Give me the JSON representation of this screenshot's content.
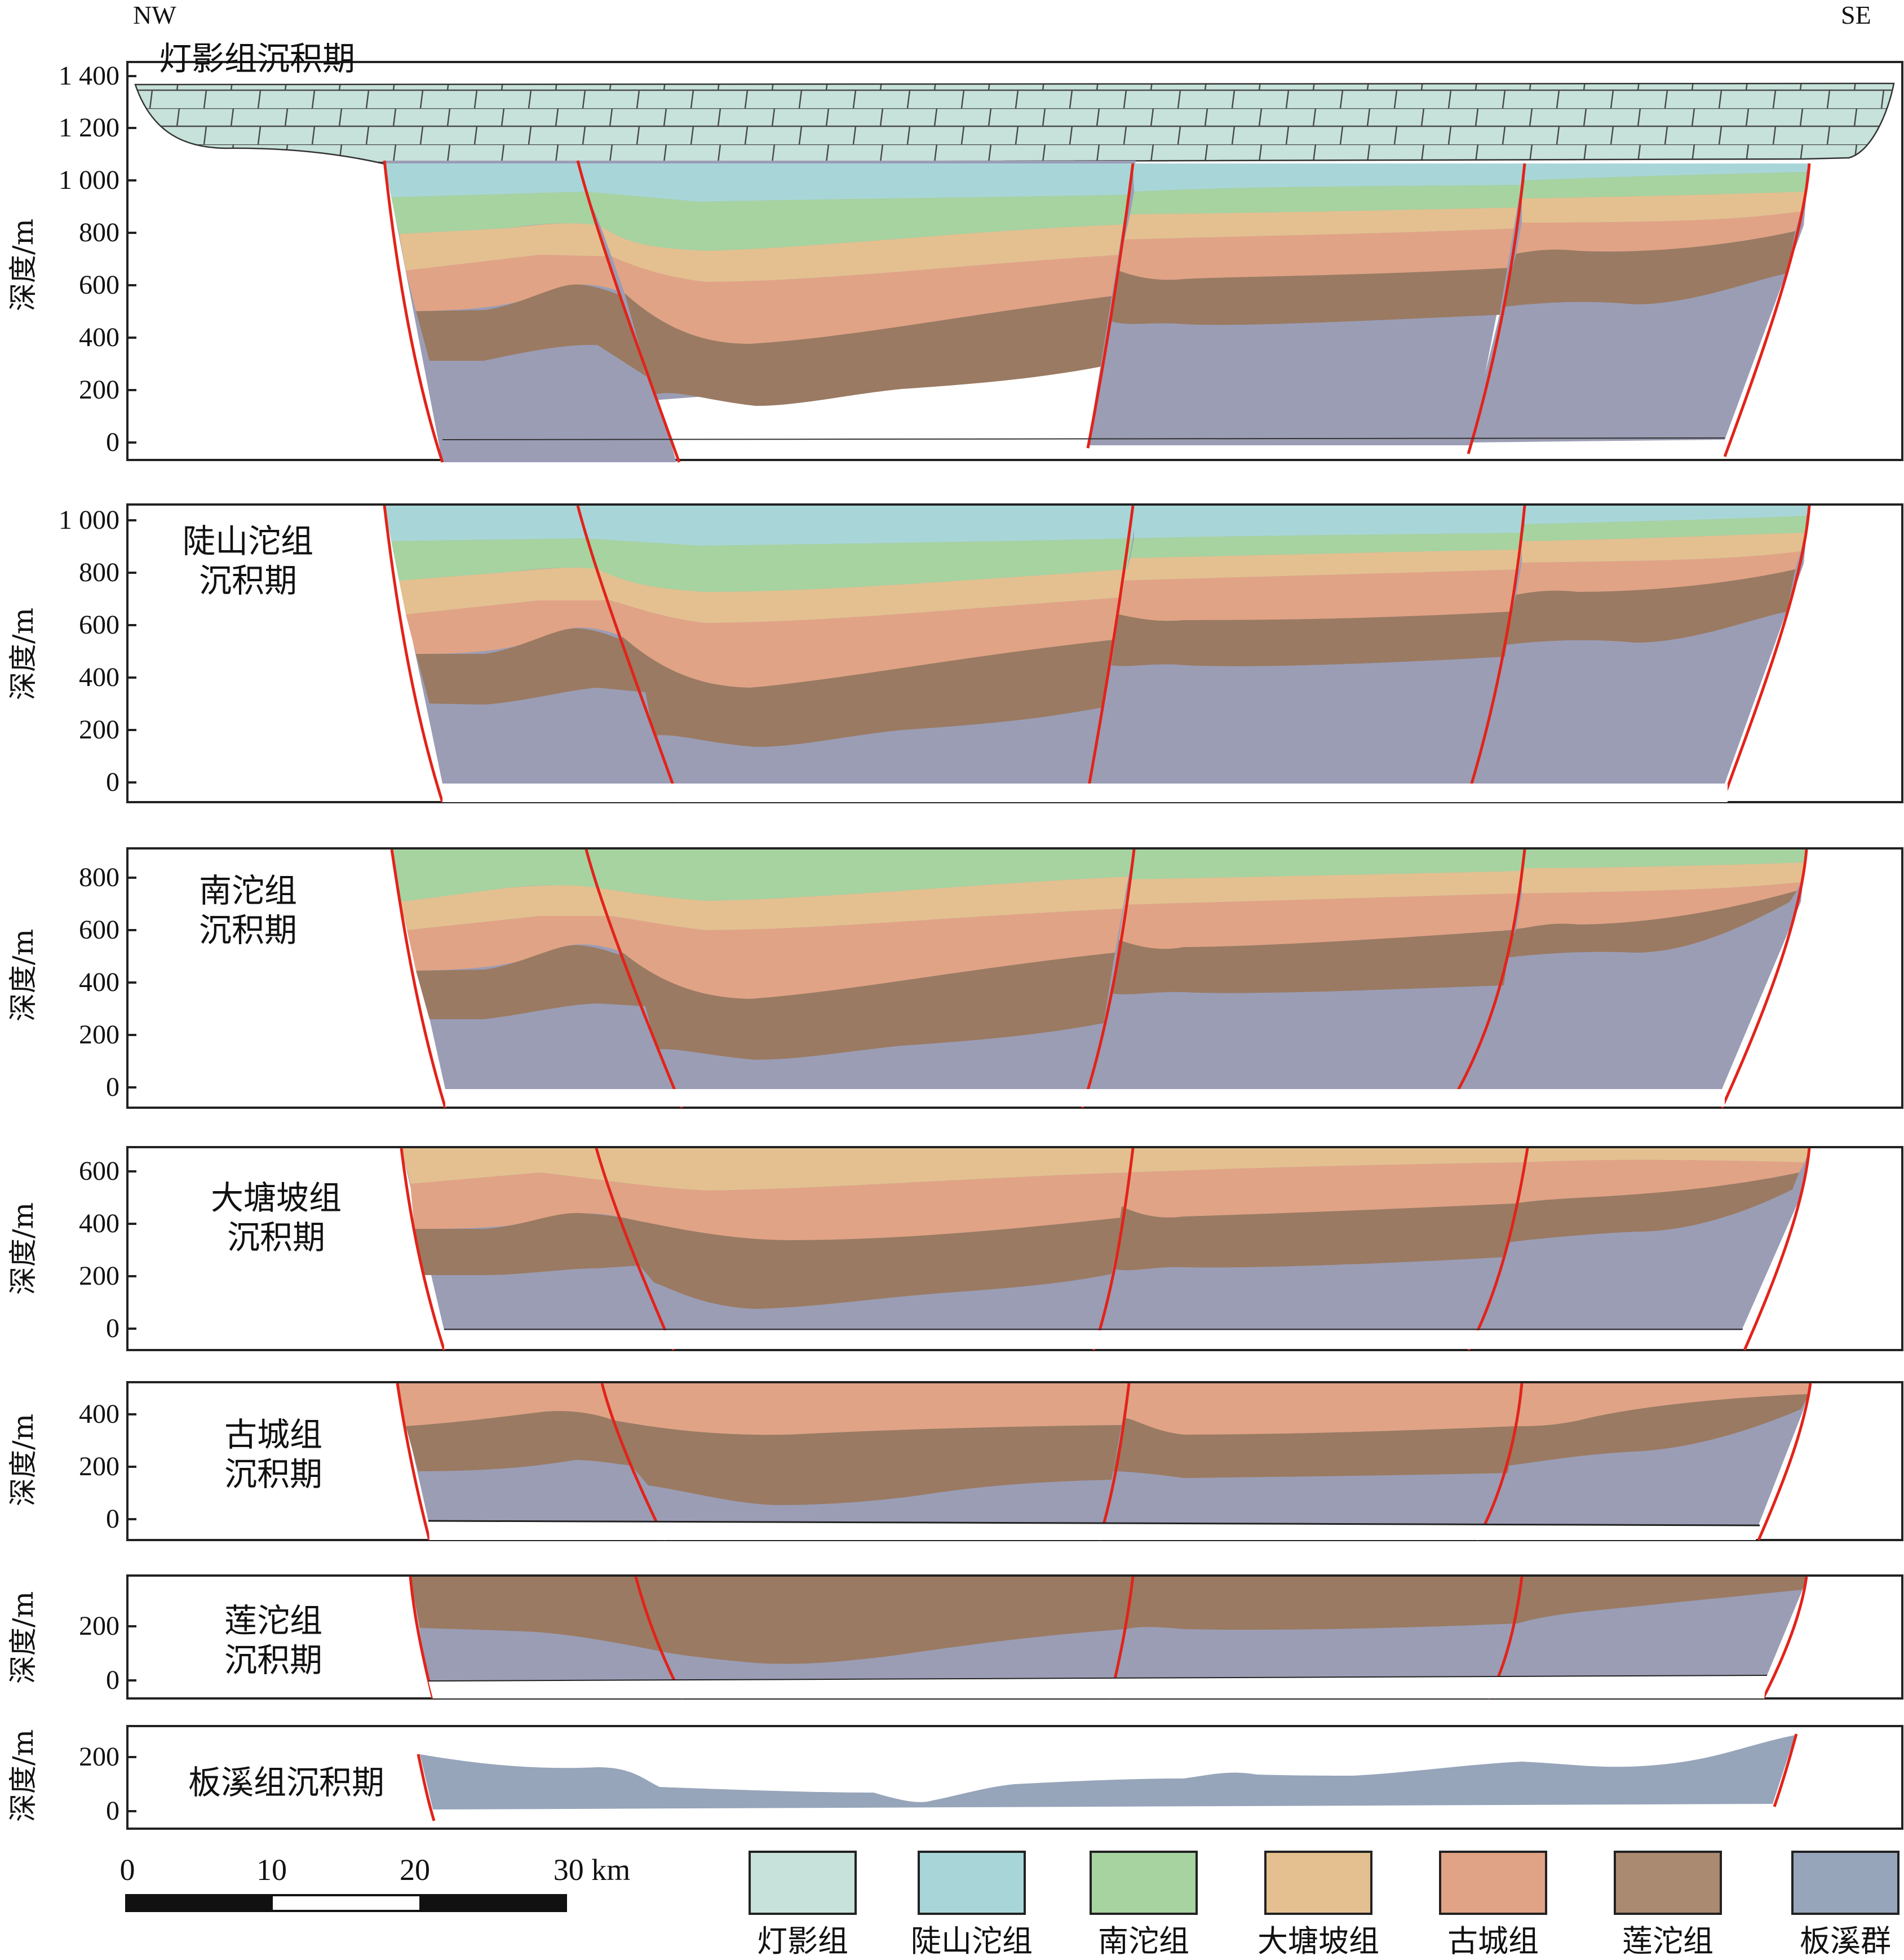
{
  "directions": {
    "left": "NW",
    "right": "SE"
  },
  "y_axis_label": "深度/m",
  "units": {
    "scale": "km"
  },
  "colors": {
    "dengying": "#c6e2da",
    "doushantuo": "#a8d6d8",
    "nantuo": "#a7d3a0",
    "datangpo": "#e4c090",
    "gucheng": "#e1a385",
    "liantuo": "#9a7a62",
    "banxi": "#9b9db5",
    "fault": "#e2231a"
  },
  "panels": [
    {
      "title": "灯影组沉积期",
      "ticks": [
        "1 400",
        "1 200",
        "1 000",
        "800",
        "600",
        "400",
        "200",
        "0"
      ]
    },
    {
      "title_lines": [
        "陡山沱组",
        "沉积期"
      ],
      "ticks": [
        "1 000",
        "800",
        "600",
        "400",
        "200",
        "0"
      ]
    },
    {
      "title_lines": [
        "南沱组",
        "沉积期"
      ],
      "ticks": [
        "800",
        "600",
        "400",
        "200",
        "0"
      ]
    },
    {
      "title_lines": [
        "大塘坡组",
        "沉积期"
      ],
      "ticks": [
        "600",
        "400",
        "200",
        "0"
      ]
    },
    {
      "title_lines": [
        "古城组",
        "沉积期"
      ],
      "ticks": [
        "400",
        "200",
        "0"
      ]
    },
    {
      "title_lines": [
        "莲沱组",
        "沉积期"
      ],
      "ticks": [
        "200",
        "0"
      ]
    },
    {
      "title": "板溪组沉积期",
      "ticks": [
        "200",
        "0"
      ]
    }
  ],
  "scale_bar": {
    "labels": [
      "0",
      "10",
      "20",
      "30 km"
    ],
    "values_km": [
      0,
      10,
      20,
      30
    ]
  },
  "legend": [
    {
      "label": "灯影组",
      "color": "#c6e2da"
    },
    {
      "label": "陡山沱组",
      "color": "#a8d6d8"
    },
    {
      "label": "南沱组",
      "color": "#a7d3a0"
    },
    {
      "label": "大塘坡组",
      "color": "#e4c090"
    },
    {
      "label": "古城组",
      "color": "#e1a385"
    },
    {
      "label": "莲沱组",
      "color": "#ab8a72"
    },
    {
      "label": "板溪群",
      "color": "#97a5ba"
    }
  ]
}
